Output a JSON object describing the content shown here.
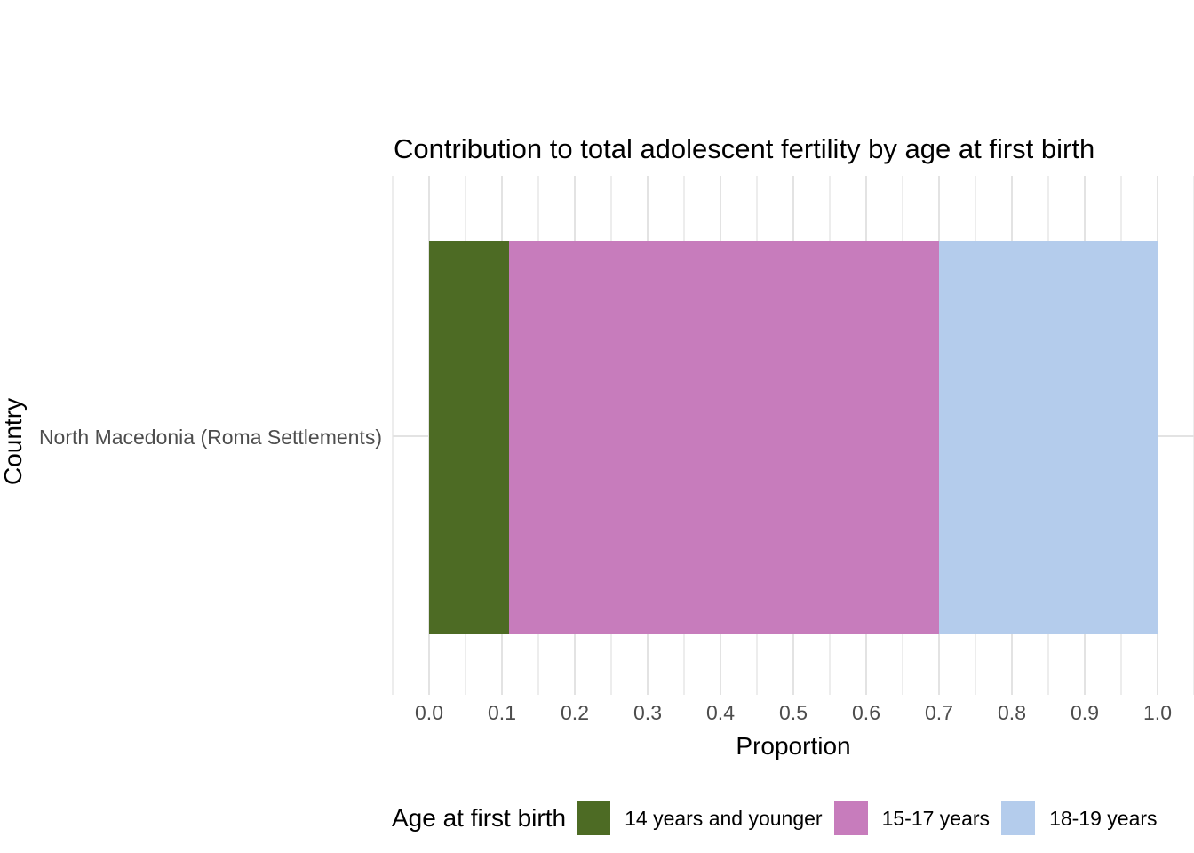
{
  "chart_data": {
    "type": "bar",
    "orientation": "horizontal",
    "stacked": true,
    "title": "Contribution to total adolescent fertility by age at first birth",
    "xlabel": "Proportion",
    "ylabel": "Country",
    "categories": [
      "North Macedonia (Roma Settlements)"
    ],
    "series": [
      {
        "name": "14 years and younger",
        "color": "#4D6B24",
        "values": [
          0.11
        ]
      },
      {
        "name": "15-17 years",
        "color": "#C77CBC",
        "values": [
          0.59
        ]
      },
      {
        "name": "18-19 years",
        "color": "#B4CCEC",
        "values": [
          0.3
        ]
      }
    ],
    "xlim": [
      -0.05,
      1.05
    ],
    "x_major_ticks": [
      0.0,
      0.1,
      0.2,
      0.3,
      0.4,
      0.5,
      0.6,
      0.7,
      0.8,
      0.9,
      1.0
    ],
    "x_tick_labels": [
      "0.0",
      "0.1",
      "0.2",
      "0.3",
      "0.4",
      "0.5",
      "0.6",
      "0.7",
      "0.8",
      "0.9",
      "1.0"
    ],
    "x_minor_ticks": [
      -0.05,
      0.05,
      0.15,
      0.25,
      0.35,
      0.45,
      0.55,
      0.65,
      0.75,
      0.85,
      0.95,
      1.05
    ],
    "grid": {
      "show_major": true,
      "show_minor": true,
      "major_color": "#E3E3E3",
      "minor_color": "#EDEDED"
    },
    "legend": {
      "title": "Age at first birth",
      "position": "bottom"
    },
    "background": "#FFFFFF",
    "tick_label_color": "#4D4D4D",
    "title_color": "#000000"
  }
}
